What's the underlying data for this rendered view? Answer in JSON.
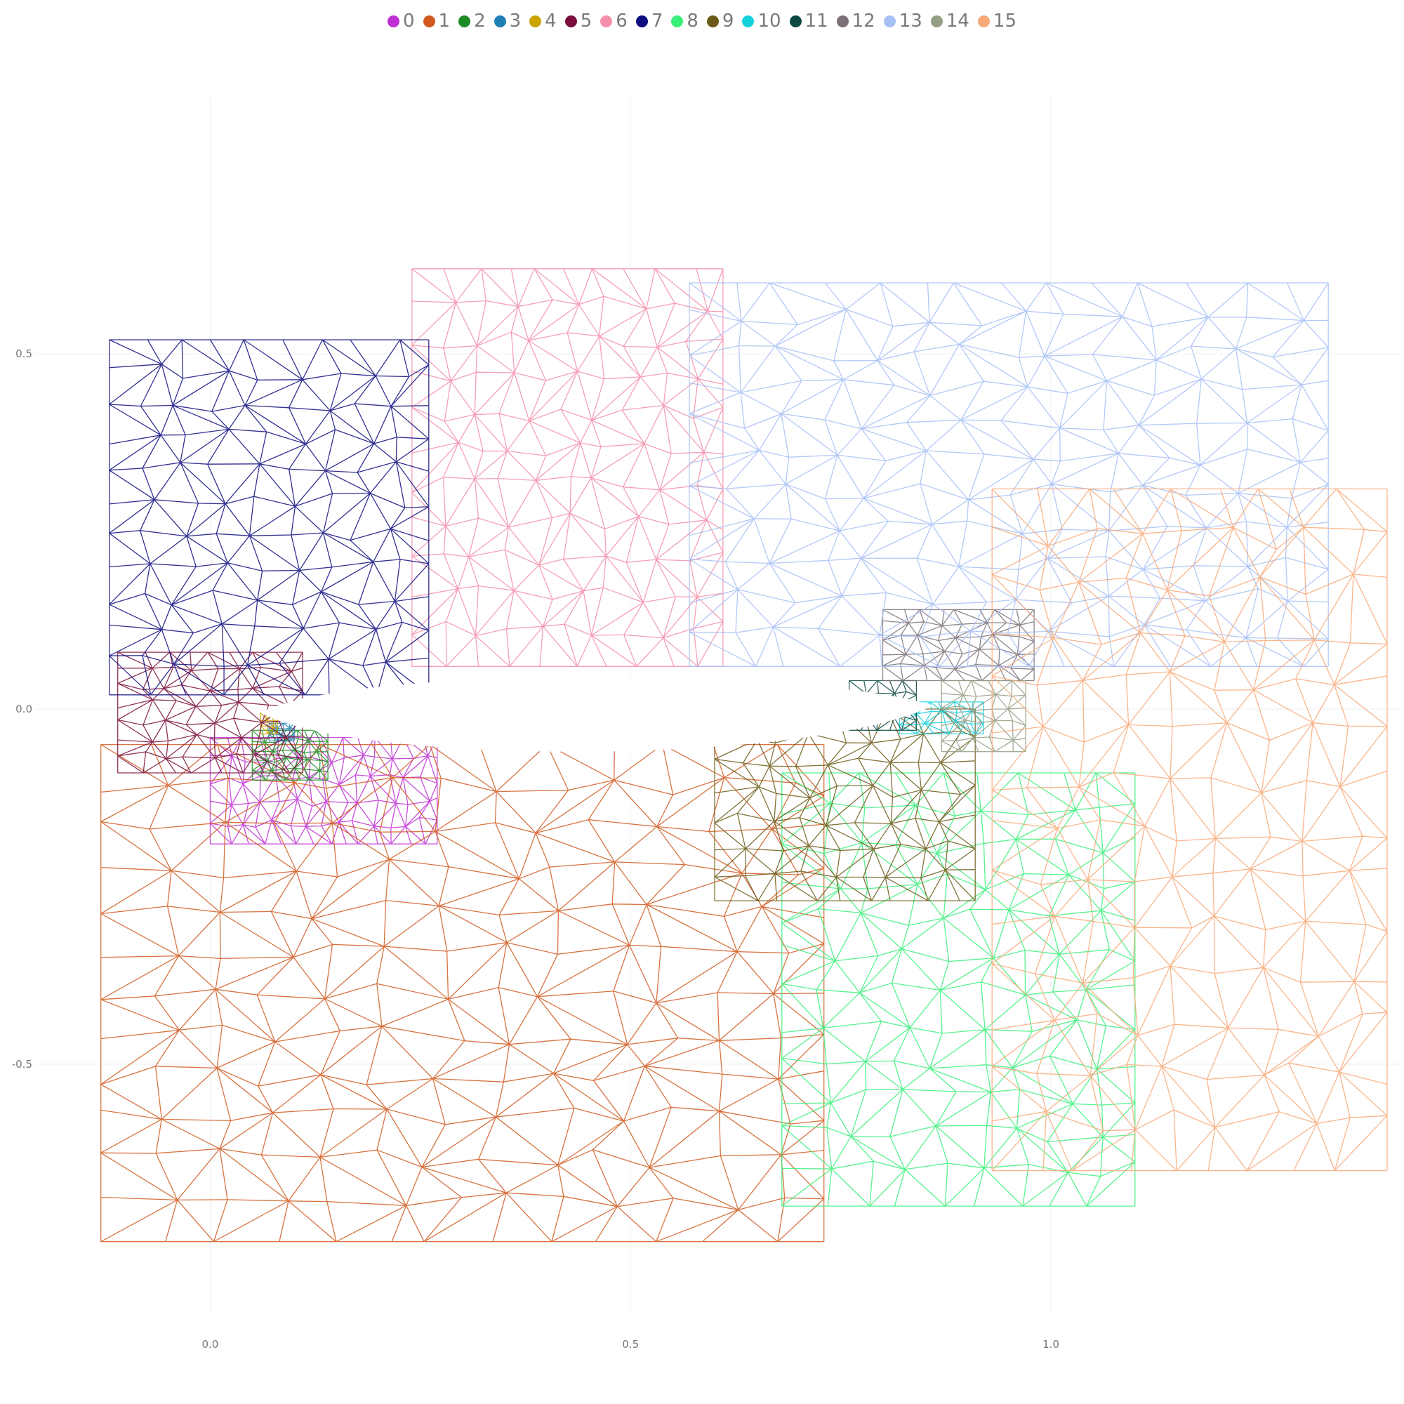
{
  "chart_data": {
    "type": "mesh",
    "xlim": [
      -0.25,
      1.42
    ],
    "ylim": [
      -0.86,
      0.86
    ],
    "x_ticks": [
      {
        "value": 0.0,
        "label": "0.0"
      },
      {
        "value": 0.5,
        "label": "0.5"
      },
      {
        "value": 1.0,
        "label": "1.0"
      }
    ],
    "y_ticks": [
      {
        "value": 0.5,
        "label": "0.5"
      },
      {
        "value": 0.0,
        "label": "0.0"
      },
      {
        "value": -0.5,
        "label": "-0.5"
      }
    ],
    "grid": true,
    "legend_position": "top-center",
    "series": [
      {
        "name": "0",
        "color": "#c02fd6",
        "xr": [
          0.0,
          0.27
        ],
        "yr": [
          -0.19,
          -0.04
        ],
        "n": 14,
        "m": 5
      },
      {
        "name": "1",
        "color": "#d25a1f",
        "xr": [
          -0.13,
          0.73
        ],
        "yr": [
          -0.75,
          -0.05
        ],
        "n": 13,
        "m": 12
      },
      {
        "name": "2",
        "color": "#1f8b24",
        "xr": [
          0.05,
          0.14
        ],
        "yr": [
          -0.1,
          -0.03
        ],
        "n": 7,
        "m": 5
      },
      {
        "name": "3",
        "color": "#1f7fb4",
        "xr": [
          0.07,
          0.1
        ],
        "yr": [
          -0.045,
          -0.02
        ],
        "n": 4,
        "m": 3
      },
      {
        "name": "4",
        "color": "#c9a300",
        "xr": [
          0.06,
          0.08
        ],
        "yr": [
          -0.035,
          -0.005
        ],
        "n": 3,
        "m": 3
      },
      {
        "name": "5",
        "color": "#7a0e3a",
        "xr": [
          -0.11,
          0.11
        ],
        "yr": [
          -0.09,
          0.08
        ],
        "n": 8,
        "m": 7
      },
      {
        "name": "6",
        "color": "#f48fab",
        "xr": [
          0.24,
          0.61
        ],
        "yr": [
          0.06,
          0.62
        ],
        "n": 10,
        "m": 11
      },
      {
        "name": "7",
        "color": "#0d0d80",
        "xr": [
          -0.12,
          0.26
        ],
        "yr": [
          0.02,
          0.52
        ],
        "n": 9,
        "m": 11
      },
      {
        "name": "8",
        "color": "#3af07a",
        "xr": [
          0.68,
          1.1
        ],
        "yr": [
          -0.7,
          -0.09
        ],
        "n": 9,
        "m": 12
      },
      {
        "name": "9",
        "color": "#6b5a17",
        "xr": [
          0.6,
          0.91
        ],
        "yr": [
          -0.27,
          0.0
        ],
        "n": 9,
        "m": 7
      },
      {
        "name": "10",
        "color": "#14d1dc",
        "xr": [
          0.82,
          0.92
        ],
        "yr": [
          -0.035,
          0.01
        ],
        "n": 6,
        "m": 3
      },
      {
        "name": "11",
        "color": "#0c4a42",
        "xr": [
          0.76,
          0.84
        ],
        "yr": [
          -0.03,
          0.04
        ],
        "n": 5,
        "m": 4
      },
      {
        "name": "12",
        "color": "#7b7079",
        "xr": [
          0.8,
          0.98
        ],
        "yr": [
          0.04,
          0.14
        ],
        "n": 8,
        "m": 5
      },
      {
        "name": "13",
        "color": "#a6bff5",
        "xr": [
          0.57,
          1.33
        ],
        "yr": [
          0.06,
          0.6
        ],
        "n": 14,
        "m": 11
      },
      {
        "name": "14",
        "color": "#949e84",
        "xr": [
          0.87,
          0.97
        ],
        "yr": [
          -0.06,
          0.04
        ],
        "n": 5,
        "m": 5
      },
      {
        "name": "15",
        "color": "#f8a978",
        "xr": [
          0.93,
          1.4
        ],
        "yr": [
          -0.65,
          0.31
        ],
        "n": 9,
        "m": 14
      }
    ]
  }
}
